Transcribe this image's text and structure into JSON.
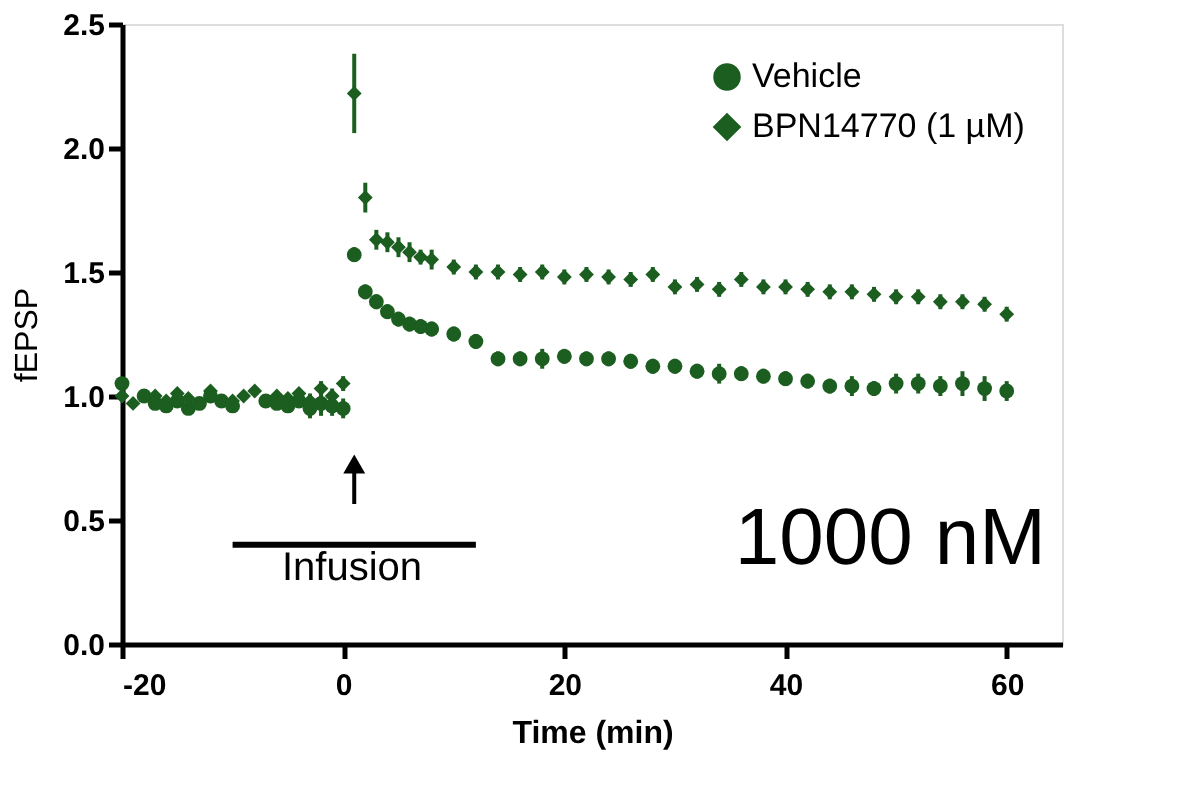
{
  "chart_data": {
    "type": "scatter",
    "xlabel": "Time (min)",
    "ylabel": "fEPSP",
    "xlim": [
      -20,
      65
    ],
    "xticks": [
      -20,
      0,
      20,
      40,
      60
    ],
    "ylim": [
      0,
      2.5
    ],
    "yticks": [
      {
        "value": 0,
        "label": "0.0"
      },
      0.5,
      {
        "value": 1,
        "label": "1.0"
      },
      1.5,
      {
        "value": 2,
        "label": "2.0"
      },
      2.5
    ],
    "grid": false,
    "legend": "top right",
    "annotations": [
      "Infusion",
      "1000 nM"
    ],
    "series": [
      {
        "name": "Vehicle",
        "color": "#1b5e20",
        "marker": "circle",
        "x": [
          -20,
          -19,
          -18,
          -17,
          -16,
          -15,
          -14,
          -13,
          -12,
          -11,
          -10,
          -9,
          -8,
          -7,
          -6,
          -5,
          -4,
          -3,
          -2,
          -1,
          0,
          1,
          2,
          3,
          4,
          5,
          6,
          7,
          8,
          10,
          12,
          14,
          16,
          18,
          20,
          22,
          24,
          26,
          28,
          30,
          32,
          34,
          36,
          38,
          40,
          42,
          44,
          46,
          48,
          50,
          52,
          54,
          56,
          58,
          60
        ],
        "values": [
          1.05,
          null,
          1.0,
          0.97,
          0.96,
          0.98,
          0.95,
          0.97,
          1.0,
          0.98,
          0.96,
          null,
          null,
          0.98,
          0.97,
          0.96,
          0.98,
          0.95,
          0.97,
          0.96,
          0.95,
          1.57,
          1.42,
          1.38,
          1.34,
          1.31,
          1.29,
          1.28,
          1.27,
          1.25,
          1.22,
          1.15,
          1.15,
          1.15,
          1.16,
          1.15,
          1.15,
          1.14,
          1.12,
          1.12,
          1.1,
          1.09,
          1.09,
          1.08,
          1.07,
          1.06,
          1.04,
          1.04,
          1.03,
          1.05,
          1.05,
          1.04,
          1.05,
          1.03,
          1.02
        ],
        "errors": [
          null,
          null,
          null,
          null,
          null,
          null,
          null,
          null,
          null,
          null,
          null,
          null,
          null,
          null,
          null,
          null,
          null,
          0.04,
          0.05,
          0.04,
          0.04,
          0.03,
          0.03,
          0.03,
          0.03,
          0.03,
          0.03,
          0.03,
          0.03,
          0.03,
          0.03,
          0.03,
          0.03,
          0.04,
          0.03,
          0.03,
          0.03,
          0.03,
          0.03,
          0.03,
          0.03,
          0.04,
          0.03,
          0.03,
          0.03,
          0.03,
          0.03,
          0.04,
          0.03,
          0.04,
          0.04,
          0.04,
          0.05,
          0.05,
          0.04
        ]
      },
      {
        "name": "BPN14770 (1 µM)",
        "color": "#1b5e20",
        "marker": "diamond",
        "x": [
          -20,
          -19,
          -18,
          -17,
          -16,
          -15,
          -14,
          -13,
          -12,
          -11,
          -10,
          -9,
          -8,
          -7,
          -6,
          -5,
          -4,
          -3,
          -2,
          -1,
          0,
          1,
          2,
          3,
          4,
          5,
          6,
          7,
          8,
          10,
          12,
          14,
          16,
          18,
          20,
          22,
          24,
          26,
          28,
          30,
          32,
          34,
          36,
          38,
          40,
          42,
          44,
          46,
          48,
          50,
          52,
          54,
          56,
          58,
          60
        ],
        "values": [
          1.0,
          0.97,
          null,
          1.0,
          0.98,
          1.01,
          0.99,
          null,
          1.02,
          null,
          0.98,
          1.0,
          1.02,
          null,
          1.0,
          0.99,
          1.01,
          0.98,
          1.03,
          1.0,
          1.05,
          2.22,
          1.8,
          1.63,
          1.62,
          1.6,
          1.58,
          1.56,
          1.55,
          1.52,
          1.5,
          1.5,
          1.49,
          1.5,
          1.48,
          1.49,
          1.48,
          1.47,
          1.49,
          1.44,
          1.45,
          1.43,
          1.47,
          1.44,
          1.44,
          1.43,
          1.42,
          1.42,
          1.41,
          1.4,
          1.4,
          1.38,
          1.38,
          1.37,
          1.33
        ],
        "errors": [
          null,
          null,
          null,
          null,
          null,
          null,
          null,
          null,
          null,
          null,
          null,
          null,
          null,
          null,
          null,
          null,
          null,
          0.03,
          0.03,
          0.03,
          0.03,
          0.16,
          0.06,
          0.04,
          0.04,
          0.04,
          0.04,
          0.03,
          0.04,
          0.03,
          0.03,
          0.03,
          0.03,
          0.03,
          0.03,
          0.03,
          0.03,
          0.03,
          0.03,
          0.03,
          0.03,
          0.03,
          0.03,
          0.03,
          0.03,
          0.03,
          0.03,
          0.03,
          0.03,
          0.03,
          0.03,
          0.03,
          0.03,
          0.03,
          0.03
        ]
      },
      {
        "type": "line",
        "color": "#000000",
        "marker": "none",
        "x": [
          -10,
          12
        ],
        "values": [
          0.4,
          0.4
        ]
      }
    ]
  }
}
